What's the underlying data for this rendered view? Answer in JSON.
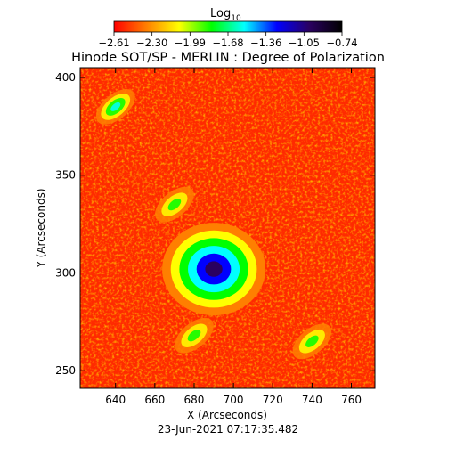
{
  "chart_data": {
    "type": "heatmap",
    "title": "Hinode SOT/SP - MERLIN : Degree of Polarization",
    "colorbar": {
      "label_main": "Log",
      "label_sub": "10",
      "ticks": [
        "−2.61",
        "−2.30",
        "−1.99",
        "−1.68",
        "−1.36",
        "−1.05",
        "−0.74"
      ],
      "range": [
        -2.61,
        -0.74
      ],
      "colors": [
        "#ff0000",
        "#ff7f00",
        "#ffff00",
        "#00ff00",
        "#00ffff",
        "#0000ff",
        "#2a0060",
        "#000000"
      ]
    },
    "xlabel": "X (Arcseconds)",
    "ylabel": "Y (Arcseconds)",
    "xlim": [
      622,
      772
    ],
    "ylim": [
      241,
      405
    ],
    "xticks": [
      640,
      660,
      680,
      700,
      720,
      740,
      760
    ],
    "yticks": [
      250,
      300,
      350,
      400
    ],
    "features": [
      {
        "x": 690,
        "y": 302,
        "value": -0.74
      },
      {
        "x": 640,
        "y": 385,
        "value": -1.5
      },
      {
        "x": 670,
        "y": 335,
        "value": -1.8
      },
      {
        "x": 680,
        "y": 268,
        "value": -1.6
      },
      {
        "x": 740,
        "y": 265,
        "value": -1.7
      }
    ],
    "background_value": -2.61,
    "footer": "23-Jun-2021 07:17:35.482"
  }
}
